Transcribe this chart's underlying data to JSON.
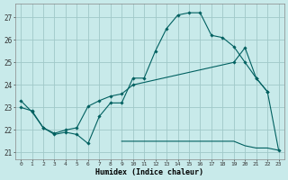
{
  "xlabel": "Humidex (Indice chaleur)",
  "bg_color": "#c8eaea",
  "grid_color": "#a0c8c8",
  "line_color": "#006060",
  "x_ticks": [
    0,
    1,
    2,
    3,
    4,
    5,
    6,
    7,
    8,
    9,
    10,
    11,
    12,
    13,
    14,
    15,
    16,
    17,
    18,
    19,
    20,
    21,
    22,
    23
  ],
  "y_ticks": [
    21,
    22,
    23,
    24,
    25,
    26,
    27
  ],
  "ylim": [
    20.7,
    27.6
  ],
  "xlim": [
    -0.5,
    23.5
  ],
  "line1_x": [
    0,
    1,
    2,
    3,
    4,
    5,
    6,
    7,
    8,
    9,
    10,
    11,
    12,
    13,
    14,
    15,
    16,
    17,
    18,
    19,
    20,
    21,
    22
  ],
  "line1_y": [
    23.3,
    22.8,
    22.1,
    21.8,
    21.9,
    21.8,
    21.4,
    22.6,
    23.2,
    23.2,
    24.3,
    24.3,
    25.5,
    26.5,
    27.1,
    27.2,
    27.2,
    26.2,
    26.1,
    25.7,
    25.0,
    24.3,
    23.7
  ],
  "line2_x": [
    0,
    1,
    2,
    3,
    4,
    5,
    6,
    7,
    8,
    9,
    10,
    19,
    20,
    21,
    22,
    23
  ],
  "line2_y": [
    23.0,
    22.85,
    22.1,
    21.85,
    22.0,
    22.1,
    23.05,
    23.3,
    23.5,
    23.6,
    24.0,
    25.0,
    25.65,
    24.3,
    23.7,
    21.1
  ],
  "line3_x": [
    9,
    10,
    11,
    12,
    13,
    14,
    15,
    16,
    17,
    18,
    19,
    20,
    21,
    22,
    23
  ],
  "line3_y": [
    21.5,
    21.5,
    21.5,
    21.5,
    21.5,
    21.5,
    21.5,
    21.5,
    21.5,
    21.5,
    21.5,
    21.3,
    21.2,
    21.2,
    21.1
  ]
}
